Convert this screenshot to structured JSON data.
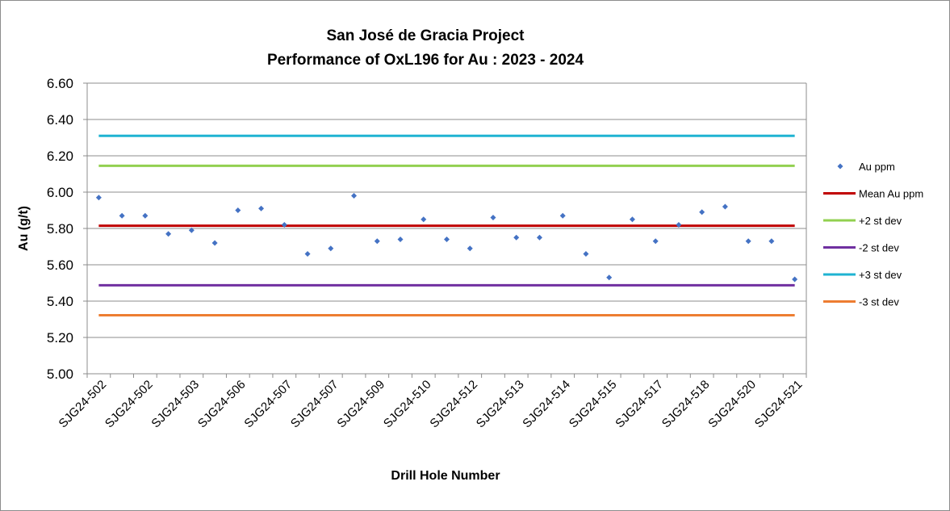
{
  "chart_data": {
    "type": "scatter",
    "title": "San José de Gracia Project",
    "subtitle": "Performance of OxL196 for Au : 2023 - 2024",
    "xlabel": "Drill Hole Number",
    "ylabel": "Au (g/t)",
    "ylim": [
      5.0,
      6.6
    ],
    "ytick_step": 0.2,
    "yticks": [
      "5.00",
      "5.20",
      "5.40",
      "5.60",
      "5.80",
      "6.00",
      "6.20",
      "6.40",
      "6.60"
    ],
    "grid": true,
    "legend_position": "right",
    "x_tick_labels": [
      "SJG24-502",
      "SJG24-502",
      "SJG24-503",
      "SJG24-506",
      "SJG24-507",
      "SJG24-507",
      "SJG24-509",
      "SJG24-510",
      "SJG24-512",
      "SJG24-513",
      "SJG24-514",
      "SJG24-515",
      "SJG24-517",
      "SJG24-518",
      "SJG24-520",
      "SJG24-521"
    ],
    "series": [
      {
        "name": "Au ppm",
        "kind": "markers",
        "color": "#4472c4",
        "values": [
          5.97,
          5.87,
          5.87,
          5.77,
          5.79,
          5.72,
          5.9,
          5.91,
          5.82,
          5.66,
          5.69,
          5.98,
          5.73,
          5.74,
          5.85,
          5.74,
          5.69,
          5.86,
          5.75,
          5.75,
          5.87,
          5.66,
          5.53,
          5.85,
          5.73,
          5.82,
          5.89,
          5.92,
          5.73,
          5.73,
          5.52
        ]
      },
      {
        "name": "Mean Au ppm",
        "kind": "line",
        "color": "#c00000",
        "value": 5.815
      },
      {
        "name": "+2 st dev",
        "kind": "line",
        "color": "#92d050",
        "value": 6.145
      },
      {
        "name": "-2 st dev",
        "kind": "line",
        "color": "#7030a0",
        "value": 5.487
      },
      {
        "name": "+3 st dev",
        "kind": "line",
        "color": "#1fb3d2",
        "value": 6.31
      },
      {
        "name": "-3 st dev",
        "kind": "line",
        "color": "#ed7d31",
        "value": 5.322
      }
    ]
  }
}
